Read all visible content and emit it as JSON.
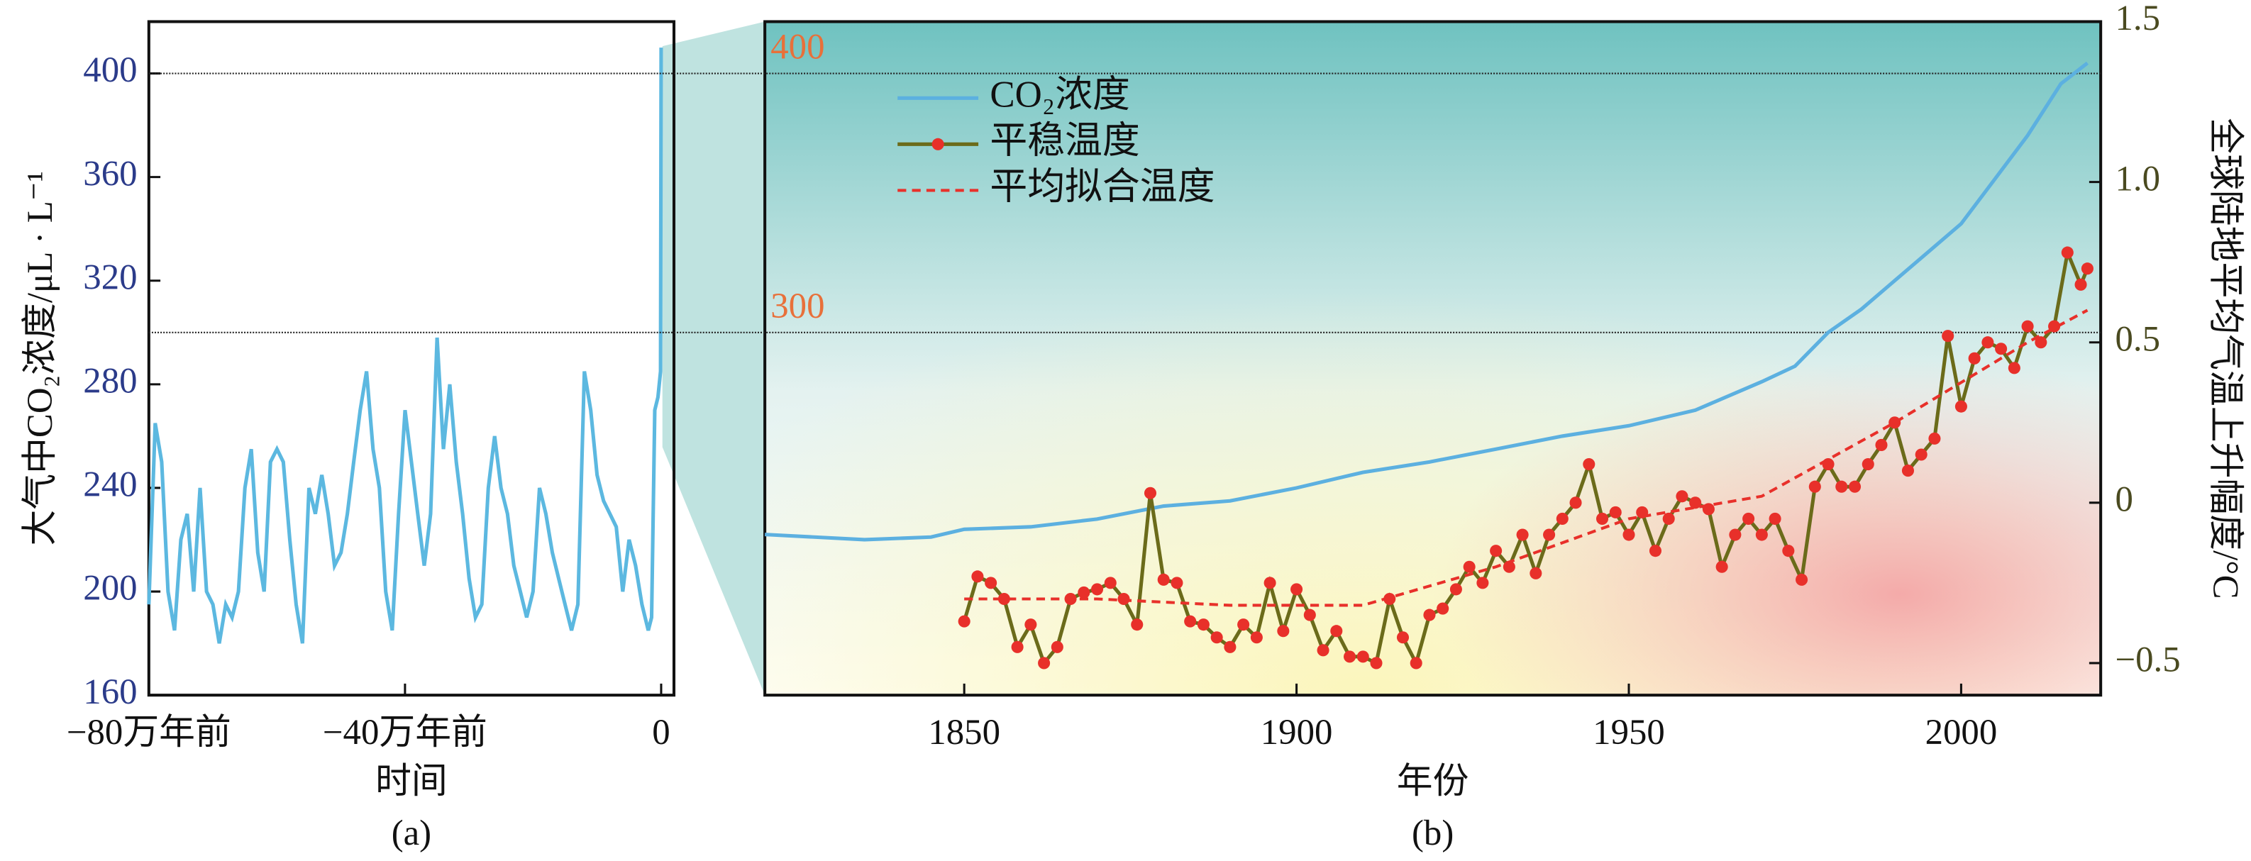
{
  "chart_data": [
    {
      "type": "line",
      "y_label": "大气中CO₂浓度/μL · L⁻¹",
      "x_label": "时间",
      "caption": "(a)",
      "x": [
        -80,
        -79,
        -78,
        -77,
        -76,
        -75,
        -74,
        -73,
        -72,
        -71,
        -70,
        -69,
        -68,
        -67,
        -66,
        -65,
        -64,
        -63,
        -62,
        -61,
        -60,
        -59,
        -58,
        -57,
        -56,
        -55,
        -54,
        -53,
        -52,
        -51,
        -50,
        -49,
        -48,
        -47,
        -46,
        -45,
        -44,
        -43,
        -42,
        -41,
        -40,
        -39,
        -38,
        -37,
        -36,
        -35,
        -34,
        -33,
        -32,
        -31,
        -30,
        -29,
        -28,
        -27,
        -26,
        -25,
        -24,
        -23,
        -22,
        -21,
        -20,
        -19,
        -18,
        -17,
        -16,
        -15,
        -14,
        -13,
        -12,
        -11,
        -10,
        -9,
        -8,
        -7,
        -6,
        -5,
        -4,
        -3,
        -2,
        -1.5,
        -1,
        -0.5,
        -0.1,
        0
      ],
      "series": [
        {
          "color": "#5cb8e0",
          "values": [
            195,
            265,
            250,
            200,
            185,
            220,
            230,
            200,
            240,
            200,
            195,
            180,
            195,
            190,
            200,
            240,
            255,
            215,
            200,
            250,
            255,
            250,
            220,
            195,
            180,
            240,
            230,
            245,
            230,
            210,
            215,
            230,
            250,
            270,
            285,
            255,
            240,
            200,
            185,
            230,
            270,
            250,
            230,
            210,
            230,
            298,
            255,
            280,
            250,
            230,
            205,
            190,
            195,
            240,
            260,
            240,
            230,
            210,
            200,
            190,
            200,
            240,
            230,
            215,
            205,
            195,
            185,
            195,
            285,
            270,
            245,
            235,
            230,
            225,
            200,
            220,
            210,
            195,
            185,
            190,
            270,
            275,
            285,
            410
          ]
        }
      ],
      "xlim": [
        -80,
        2
      ],
      "xticks": [
        {
          "value": -80,
          "label": "−80万年前"
        },
        {
          "value": -40,
          "label": "−40万年前"
        },
        0
      ],
      "ylim": [
        160,
        420
      ],
      "yticks": [
        160,
        200,
        240,
        280,
        320,
        360,
        400
      ]
    },
    {
      "type": "line",
      "x_label": "年份",
      "caption": "(b)",
      "y2_label": "全球陆地平均气温上升幅度/°C",
      "ref_lines": [
        400,
        300
      ],
      "series": [
        {
          "name": "CO₂浓度",
          "color": "#5cb0e0",
          "x": [
            1820,
            1835,
            1845,
            1850,
            1860,
            1870,
            1880,
            1890,
            1900,
            1910,
            1920,
            1930,
            1940,
            1950,
            1960,
            1970,
            1975,
            1980,
            1985,
            1990,
            1995,
            2000,
            2005,
            2010,
            2015,
            2019
          ],
          "values": [
            222,
            220,
            221,
            224,
            225,
            228,
            233,
            235,
            240,
            246,
            250,
            255,
            260,
            264,
            270,
            281,
            287,
            300,
            309,
            320,
            331,
            342,
            359,
            376,
            396,
            404
          ]
        },
        {
          "name": "平稳温度",
          "color": "#6b6b1a",
          "marker_color": "#e8302a",
          "axis": "y2",
          "x": [
            1850,
            1852,
            1854,
            1856,
            1858,
            1860,
            1862,
            1864,
            1866,
            1868,
            1870,
            1872,
            1874,
            1876,
            1878,
            1880,
            1882,
            1884,
            1886,
            1888,
            1890,
            1892,
            1894,
            1896,
            1898,
            1900,
            1902,
            1904,
            1906,
            1908,
            1910,
            1912,
            1914,
            1916,
            1918,
            1920,
            1922,
            1924,
            1926,
            1928,
            1930,
            1932,
            1934,
            1936,
            1938,
            1940,
            1942,
            1944,
            1946,
            1948,
            1950,
            1952,
            1954,
            1956,
            1958,
            1960,
            1962,
            1964,
            1966,
            1968,
            1970,
            1972,
            1974,
            1976,
            1978,
            1980,
            1982,
            1984,
            1986,
            1988,
            1990,
            1992,
            1994,
            1996,
            1998,
            2000,
            2002,
            2004,
            2006,
            2008,
            2010,
            2012,
            2014,
            2016,
            2018,
            2019
          ],
          "values": [
            -0.37,
            -0.23,
            -0.25,
            -0.3,
            -0.45,
            -0.38,
            -0.5,
            -0.45,
            -0.3,
            -0.28,
            -0.27,
            -0.25,
            -0.3,
            -0.38,
            0.03,
            -0.24,
            -0.25,
            -0.37,
            -0.38,
            -0.42,
            -0.45,
            -0.38,
            -0.42,
            -0.25,
            -0.4,
            -0.27,
            -0.35,
            -0.46,
            -0.4,
            -0.48,
            -0.48,
            -0.5,
            -0.3,
            -0.42,
            -0.5,
            -0.35,
            -0.33,
            -0.27,
            -0.2,
            -0.25,
            -0.15,
            -0.2,
            -0.1,
            -0.22,
            -0.1,
            -0.05,
            0,
            0.12,
            -0.05,
            -0.03,
            -0.1,
            -0.03,
            -0.15,
            -0.05,
            0.02,
            0,
            -0.02,
            -0.2,
            -0.1,
            -0.05,
            -0.1,
            -0.05,
            -0.15,
            -0.24,
            0.05,
            0.12,
            0.05,
            0.05,
            0.12,
            0.18,
            0.25,
            0.1,
            0.15,
            0.2,
            0.52,
            0.3,
            0.45,
            0.5,
            0.48,
            0.42,
            0.55,
            0.5,
            0.55,
            0.78,
            0.68,
            0.73
          ]
        },
        {
          "name": "平均拟合温度",
          "color": "#e8302a",
          "dashed": true,
          "axis": "y2",
          "x": [
            1850,
            1870,
            1890,
            1910,
            1930,
            1950,
            1970,
            1990,
            2010,
            2019
          ],
          "values": [
            -0.3,
            -0.3,
            -0.32,
            -0.32,
            -0.2,
            -0.05,
            0.02,
            0.25,
            0.5,
            0.6
          ]
        }
      ],
      "xlim": [
        1820,
        2021
      ],
      "xticks": [
        1850,
        1900,
        1950,
        2000
      ],
      "ylim": [
        160,
        420
      ],
      "y2lim": [
        -0.6,
        1.5
      ],
      "y2ticks": [
        {
          "value": -0.5,
          "label": "−0.5"
        },
        0,
        0.5,
        {
          "value": 1,
          "label": "1.0"
        },
        1.5
      ]
    }
  ]
}
